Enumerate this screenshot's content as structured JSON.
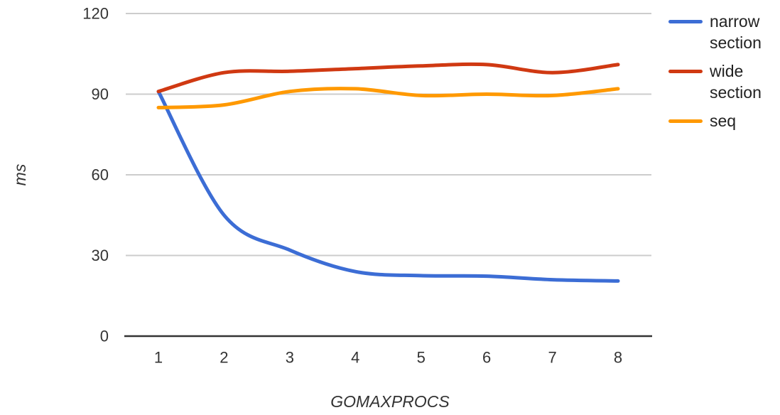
{
  "chart_data": {
    "type": "line",
    "smooth": true,
    "grid": true,
    "legend_position": "right",
    "title": "",
    "xlabel": "GOMAXPROCS",
    "ylabel": "ms",
    "x": [
      1,
      2,
      3,
      4,
      5,
      6,
      7,
      8
    ],
    "x_tick_labels": [
      "1",
      "2",
      "3",
      "4",
      "5",
      "6",
      "7",
      "8"
    ],
    "y_ticks": [
      0,
      30,
      60,
      90,
      120
    ],
    "y_tick_labels": [
      "0",
      "30",
      "60",
      "90",
      "120"
    ],
    "ylim": [
      0,
      120
    ],
    "series": [
      {
        "name": "narrow section",
        "color": "#3C6DD5",
        "values": [
          91,
          45,
          32,
          24,
          22.5,
          22.3,
          21,
          20.5
        ]
      },
      {
        "name": "wide section",
        "color": "#D03912",
        "values": [
          91,
          98,
          98.5,
          99.5,
          100.5,
          101,
          98,
          101
        ]
      },
      {
        "name": "seq",
        "color": "#FF9900",
        "values": [
          85,
          86,
          91,
          92,
          89.5,
          90,
          89.5,
          92
        ]
      }
    ]
  },
  "legend": {
    "items": [
      {
        "lines": [
          "narrow",
          "section"
        ]
      },
      {
        "lines": [
          "wide",
          "section"
        ]
      },
      {
        "lines": [
          "seq"
        ]
      }
    ]
  },
  "colors": {
    "gridline": "#cccccc",
    "axis_line": "#333333",
    "tick_text": "#333333",
    "legend_text": "#222222",
    "background": "#ffffff"
  }
}
